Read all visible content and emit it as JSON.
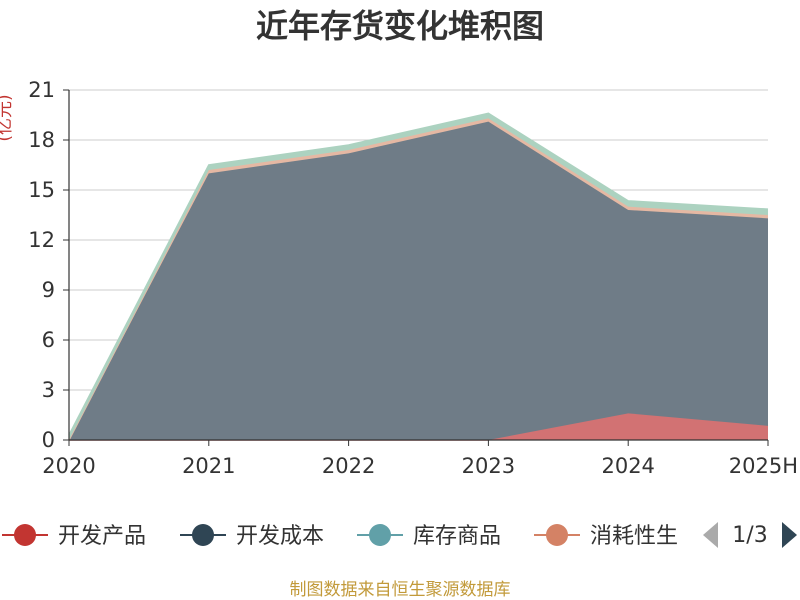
{
  "chart_data": {
    "type": "area",
    "stacked": true,
    "title": "近年存货变化堆积图",
    "ylabel": "(亿元)",
    "categories": [
      "2020",
      "2021",
      "2022",
      "2023",
      "2024",
      "2025H"
    ],
    "ylim": [
      0,
      21
    ],
    "yticks": [
      "0",
      "3",
      "6",
      "9",
      "12",
      "15",
      "18",
      "21"
    ],
    "grid": true,
    "legend_position": "bottom",
    "series": [
      {
        "name": "开发产品",
        "color": "#c23531",
        "fill": "#d27273",
        "values": [
          0,
          0,
          0,
          0,
          1.6,
          0.85
        ]
      },
      {
        "name": "开发成本",
        "color": "#2f4554",
        "fill": "#6f7c87",
        "values": [
          0,
          16.0,
          17.2,
          19.1,
          12.2,
          12.45
        ]
      },
      {
        "name": "库存商品",
        "color": "#61a0a8",
        "fill": "#a4c9cc",
        "values": [
          0,
          0,
          0,
          0,
          0,
          0
        ]
      },
      {
        "name": "消耗性生",
        "color": "#d48265",
        "fill": "#e5b8a3",
        "values": [
          0,
          0.2,
          0.2,
          0.2,
          0.2,
          0.2
        ]
      },
      {
        "name": "",
        "color": "#91c7ae",
        "fill": "#acd2c0",
        "values": [
          0.3,
          0.3,
          0.3,
          0.3,
          0.35,
          0.35
        ]
      }
    ],
    "legend_page": "1/3",
    "source_note": "制图数据来自恒生聚源数据库"
  },
  "colors": {
    "title": "#333333",
    "ylabel": "#c23531",
    "axis": "#333333",
    "grid": "#cccccc",
    "source": "#c29a3a",
    "pager_active": "#2f4554",
    "pager_inactive": "#aaaaaa"
  }
}
